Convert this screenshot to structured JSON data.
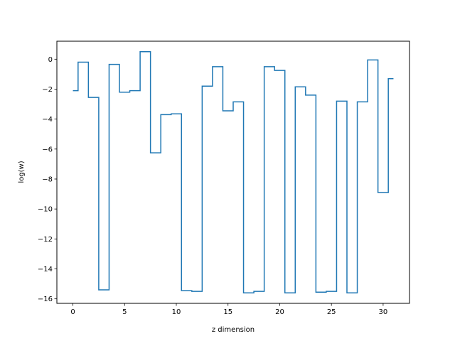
{
  "chart_data": {
    "type": "line",
    "style": "step-mid",
    "title": "",
    "xlabel": "z dimension",
    "ylabel": "log(w)",
    "xlim": [
      -1.55,
      32.55
    ],
    "ylim": [
      -16.3,
      1.2
    ],
    "xticks": [
      0,
      5,
      10,
      15,
      20,
      25,
      30
    ],
    "yticks": [
      0,
      -2,
      -4,
      -6,
      -8,
      -10,
      -12,
      -14,
      -16
    ],
    "ytick_labels": [
      "0",
      "−2",
      "−4",
      "−6",
      "−8",
      "−10",
      "−12",
      "−14",
      "−16"
    ],
    "grid": false,
    "legend": "none",
    "series": [
      {
        "color": "#1f77b4",
        "x": [
          0,
          1,
          2,
          3,
          4,
          5,
          6,
          7,
          8,
          9,
          10,
          11,
          12,
          13,
          14,
          15,
          16,
          17,
          18,
          19,
          20,
          21,
          22,
          23,
          24,
          25,
          26,
          27,
          28,
          29,
          30,
          31
        ],
        "values": [
          -2.1,
          -0.2,
          -2.55,
          -15.4,
          -0.35,
          -2.2,
          -2.1,
          0.5,
          -6.25,
          -3.7,
          -3.65,
          -15.45,
          -15.5,
          -1.8,
          -0.5,
          -3.45,
          -2.85,
          -15.6,
          -15.5,
          -0.5,
          -0.75,
          -15.6,
          -1.85,
          -2.4,
          -15.55,
          -15.5,
          -2.8,
          -15.6,
          -2.85,
          -0.05,
          -8.9,
          -1.3
        ]
      }
    ]
  }
}
